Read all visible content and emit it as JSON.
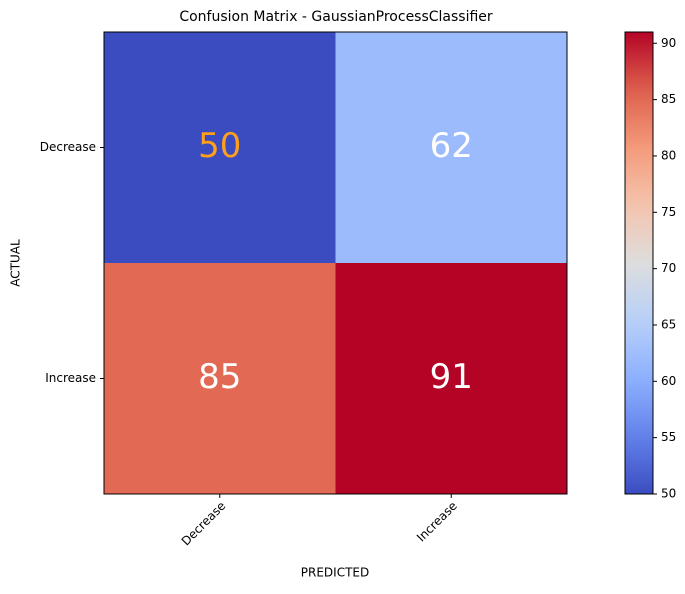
{
  "chart_data": {
    "type": "heatmap",
    "title": "Confusion Matrix - GaussianProcessClassifier",
    "xlabel": "PREDICTED",
    "ylabel": "ACTUAL",
    "x_categories": [
      "Decrease",
      "Increase"
    ],
    "y_categories": [
      "Decrease",
      "Increase"
    ],
    "values": [
      [
        50,
        62
      ],
      [
        85,
        91
      ]
    ],
    "value_label_colors": [
      [
        "#ff9f1c",
        "#ffffff"
      ],
      [
        "#ffffff",
        "#ffffff"
      ]
    ],
    "colormap": "coolwarm",
    "clim": [
      50,
      91
    ],
    "cticks": [
      50,
      55,
      60,
      65,
      70,
      75,
      80,
      85,
      90
    ]
  }
}
